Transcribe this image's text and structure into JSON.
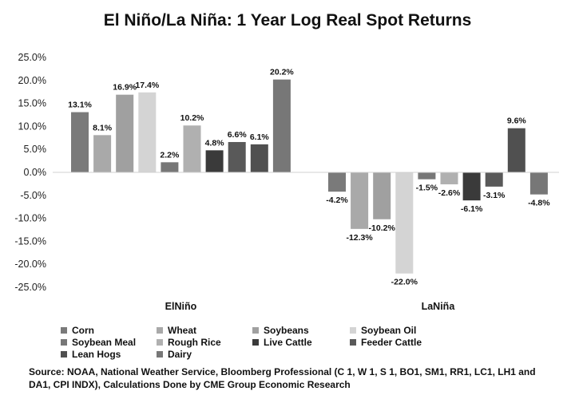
{
  "title": "El Niño/La Niña: 1 Year Log Real Spot Returns",
  "source": "Source: NOAA, National Weather Service, Bloomberg Professional (C 1, W 1, S 1, BO1, SM1, RR1, LC1, LH1 and DA1, CPI INDX), Calculations Done by CME Group Economic Research",
  "chart_data": {
    "type": "bar",
    "title": "El Niño/La Niña: 1 Year Log Real Spot Returns",
    "categories": [
      "ElNiño",
      "LaNiña"
    ],
    "yticks": [
      "25.0%",
      "20.0%",
      "15.0%",
      "10.0%",
      "5.0%",
      "0.0%",
      "-5.0%",
      "-10.0%",
      "-15.0%",
      "-20.0%",
      "-25.0%"
    ],
    "ylim": [
      -25,
      25
    ],
    "grid": false,
    "legend_position": "bottom",
    "series": [
      {
        "name": "Corn",
        "values": [
          13.1,
          -4.2
        ],
        "labels": [
          "13.1%",
          "-4.2%"
        ],
        "color": "#7a7a7a"
      },
      {
        "name": "Wheat",
        "values": [
          8.1,
          -12.3
        ],
        "labels": [
          "8.1%",
          "-12.3%"
        ],
        "color": "#a9a9a9"
      },
      {
        "name": "Soybeans",
        "values": [
          16.9,
          -10.2
        ],
        "labels": [
          "16.9%",
          "-10.2%"
        ],
        "color": "#a0a0a0"
      },
      {
        "name": "Soybean Oil",
        "values": [
          17.4,
          -22.0
        ],
        "labels": [
          "17.4%",
          "-22.0%"
        ],
        "color": "#d4d4d4"
      },
      {
        "name": "Soybean Meal",
        "values": [
          2.2,
          -1.5
        ],
        "labels": [
          "2.2%",
          "-1.5%"
        ],
        "color": "#777777"
      },
      {
        "name": "Rough Rice",
        "values": [
          10.2,
          -2.6
        ],
        "labels": [
          "10.2%",
          "-2.6%"
        ],
        "color": "#b0b0b0"
      },
      {
        "name": "Live Cattle",
        "values": [
          4.8,
          -6.1
        ],
        "labels": [
          "4.8%",
          "-6.1%"
        ],
        "color": "#3a3a3a"
      },
      {
        "name": "Feeder Cattle",
        "values": [
          6.6,
          -3.1
        ],
        "labels": [
          "6.6%",
          "-3.1%"
        ],
        "color": "#595959"
      },
      {
        "name": "Lean Hogs",
        "values": [
          6.1,
          9.6
        ],
        "labels": [
          "6.1%",
          "9.6%"
        ],
        "color": "#505050"
      },
      {
        "name": "Dairy",
        "values": [
          20.2,
          -4.8
        ],
        "labels": [
          "20.2%",
          "-4.8%"
        ],
        "color": "#777777"
      }
    ]
  }
}
